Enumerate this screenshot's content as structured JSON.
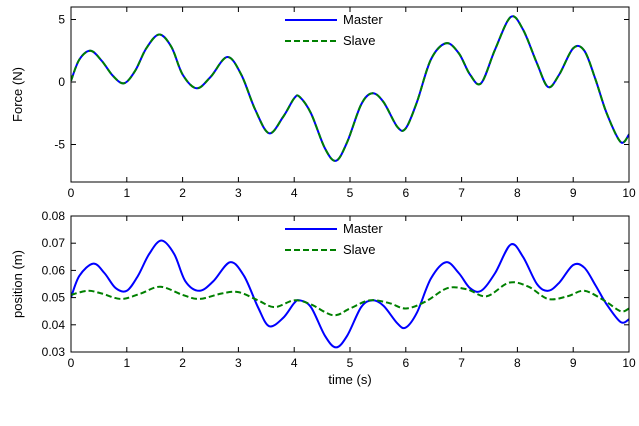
{
  "chart_data": [
    {
      "type": "line",
      "title": "",
      "xlabel": "",
      "ylabel": "Force (N)",
      "xlim": [
        0,
        10
      ],
      "ylim": [
        -8,
        6
      ],
      "xticks": [
        0,
        1,
        2,
        3,
        4,
        5,
        6,
        7,
        8,
        9,
        10
      ],
      "yticks": [
        -5,
        0,
        5
      ],
      "grid": false,
      "legend_position": "top-center",
      "series": [
        {
          "name": "Master",
          "color": "#0000ff",
          "style": "solid",
          "x": [
            0,
            0.15,
            0.35,
            0.55,
            0.75,
            0.95,
            1.15,
            1.35,
            1.58,
            1.8,
            2.0,
            2.25,
            2.5,
            2.8,
            3.05,
            3.3,
            3.55,
            3.8,
            4.0,
            4.1,
            4.3,
            4.55,
            4.75,
            4.95,
            5.2,
            5.4,
            5.6,
            5.85,
            6.0,
            6.2,
            6.45,
            6.72,
            6.95,
            7.15,
            7.35,
            7.6,
            7.88,
            8.1,
            8.35,
            8.55,
            8.75,
            9.0,
            9.2,
            9.4,
            9.6,
            9.85,
            10
          ],
          "values": [
            0.1,
            1.8,
            2.5,
            1.7,
            0.5,
            -0.1,
            0.9,
            2.7,
            3.8,
            2.8,
            0.6,
            -0.5,
            0.4,
            2.0,
            0.6,
            -2.2,
            -4.1,
            -2.8,
            -1.3,
            -1.2,
            -2.5,
            -5.3,
            -6.3,
            -4.8,
            -1.8,
            -0.9,
            -1.6,
            -3.6,
            -3.7,
            -1.6,
            1.8,
            3.1,
            2.3,
            0.6,
            -0.1,
            2.6,
            5.2,
            4.2,
            1.5,
            -0.4,
            0.6,
            2.7,
            2.5,
            0.2,
            -2.5,
            -4.8,
            -4.2
          ]
        },
        {
          "name": "Slave",
          "color": "#008000",
          "style": "dashed",
          "x": [
            0,
            0.15,
            0.35,
            0.55,
            0.75,
            0.95,
            1.15,
            1.35,
            1.58,
            1.8,
            2.0,
            2.25,
            2.5,
            2.8,
            3.05,
            3.3,
            3.55,
            3.8,
            4.0,
            4.1,
            4.3,
            4.55,
            4.75,
            4.95,
            5.2,
            5.4,
            5.6,
            5.85,
            6.0,
            6.2,
            6.45,
            6.72,
            6.95,
            7.15,
            7.35,
            7.6,
            7.88,
            8.1,
            8.35,
            8.55,
            8.75,
            9.0,
            9.2,
            9.4,
            9.6,
            9.85,
            10
          ],
          "values": [
            0.1,
            1.8,
            2.5,
            1.7,
            0.5,
            -0.1,
            0.9,
            2.7,
            3.8,
            2.8,
            0.6,
            -0.5,
            0.4,
            2.0,
            0.6,
            -2.2,
            -4.1,
            -2.8,
            -1.3,
            -1.2,
            -2.5,
            -5.3,
            -6.3,
            -4.8,
            -1.8,
            -0.9,
            -1.6,
            -3.6,
            -3.7,
            -1.6,
            1.8,
            3.1,
            2.3,
            0.6,
            -0.1,
            2.6,
            5.2,
            4.2,
            1.5,
            -0.4,
            0.6,
            2.7,
            2.5,
            0.2,
            -2.5,
            -4.8,
            -4.2
          ]
        }
      ]
    },
    {
      "type": "line",
      "title": "",
      "xlabel": "time (s)",
      "ylabel": "position (m)",
      "xlim": [
        0,
        10
      ],
      "ylim": [
        0.03,
        0.08
      ],
      "xticks": [
        0,
        1,
        2,
        3,
        4,
        5,
        6,
        7,
        8,
        9,
        10
      ],
      "yticks": [
        0.03,
        0.04,
        0.05,
        0.06,
        0.07,
        0.08
      ],
      "grid": false,
      "legend_position": "top-center",
      "series": [
        {
          "name": "Master",
          "color": "#0000ff",
          "style": "solid",
          "x": [
            0,
            0.15,
            0.4,
            0.6,
            0.8,
            1.0,
            1.2,
            1.4,
            1.62,
            1.85,
            2.05,
            2.3,
            2.55,
            2.85,
            3.1,
            3.35,
            3.55,
            3.8,
            4.0,
            4.1,
            4.3,
            4.55,
            4.75,
            4.95,
            5.2,
            5.4,
            5.6,
            5.85,
            6.0,
            6.2,
            6.45,
            6.72,
            6.95,
            7.15,
            7.35,
            7.6,
            7.88,
            8.1,
            8.35,
            8.55,
            8.75,
            9.0,
            9.2,
            9.4,
            9.6,
            9.85,
            10
          ],
          "values": [
            0.05,
            0.058,
            0.0625,
            0.059,
            0.0535,
            0.0525,
            0.058,
            0.066,
            0.071,
            0.066,
            0.056,
            0.0525,
            0.056,
            0.063,
            0.058,
            0.0465,
            0.0395,
            0.0425,
            0.048,
            0.049,
            0.0465,
            0.036,
            0.0317,
            0.036,
            0.0465,
            0.049,
            0.047,
            0.0405,
            0.039,
            0.0445,
            0.057,
            0.063,
            0.059,
            0.0535,
            0.0525,
            0.059,
            0.0695,
            0.065,
            0.055,
            0.0525,
            0.0555,
            0.062,
            0.061,
            0.0545,
            0.0475,
            0.041,
            0.042
          ]
        },
        {
          "name": "Slave",
          "color": "#008000",
          "style": "dashed",
          "x": [
            0,
            0.3,
            0.55,
            0.9,
            1.25,
            1.6,
            2.0,
            2.3,
            2.7,
            3.0,
            3.35,
            3.65,
            4.0,
            4.3,
            4.7,
            5.0,
            5.35,
            5.7,
            6.0,
            6.35,
            6.75,
            7.1,
            7.45,
            7.85,
            8.2,
            8.55,
            8.9,
            9.2,
            9.55,
            9.85,
            10
          ],
          "values": [
            0.051,
            0.0525,
            0.0515,
            0.0495,
            0.0515,
            0.054,
            0.051,
            0.0495,
            0.0515,
            0.052,
            0.049,
            0.0465,
            0.049,
            0.0475,
            0.0435,
            0.046,
            0.049,
            0.048,
            0.046,
            0.0485,
            0.0535,
            0.053,
            0.0505,
            0.0555,
            0.054,
            0.0495,
            0.0505,
            0.0525,
            0.049,
            0.045,
            0.046
          ]
        }
      ]
    }
  ]
}
